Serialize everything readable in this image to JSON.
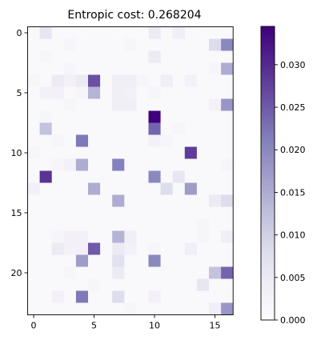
{
  "chart_data": {
    "type": "heatmap",
    "title": "Entropic cost: 0.268204",
    "xlabel": "",
    "ylabel": "",
    "n_cols": 17,
    "n_rows": 24,
    "x_ticks": [
      0,
      5,
      10,
      15
    ],
    "y_ticks": [
      0,
      5,
      10,
      15,
      20
    ],
    "colormap": "Purples",
    "colorbar": {
      "vmin": 0,
      "vmax": 0.0345,
      "ticks": [
        0.0,
        0.005,
        0.01,
        0.015,
        0.02,
        0.025,
        0.03
      ],
      "tick_labels": [
        "0.000",
        "0.005",
        "0.010",
        "0.015",
        "0.020",
        "0.025",
        "0.030"
      ]
    },
    "values": [
      [
        0.001,
        0.006,
        0.001,
        0.001,
        0.0005,
        0.001,
        0.001,
        0.0005,
        0.001,
        0.0005,
        0.005,
        0.001,
        0.004,
        0.001,
        0.0005,
        0.0005,
        0.001
      ],
      [
        0.001,
        0.001,
        0.001,
        0.002,
        0.001,
        0.001,
        0.001,
        0.001,
        0.002,
        0.001,
        0.001,
        0.001,
        0.001,
        0.001,
        0.001,
        0.008,
        0.02
      ],
      [
        0.001,
        0.002,
        0.001,
        0.001,
        0.001,
        0.001,
        0.001,
        0.001,
        0.001,
        0.001,
        0.005,
        0.001,
        0.001,
        0.001,
        0.001,
        0.001,
        0.001
      ],
      [
        0.001,
        0.001,
        0.001,
        0.002,
        0.001,
        0.001,
        0.001,
        0.001,
        0.001,
        0.001,
        0.001,
        0.001,
        0.001,
        0.001,
        0.001,
        0.002,
        0.015
      ],
      [
        0.002,
        0.001,
        0.005,
        0.003,
        0.005,
        0.026,
        0.001,
        0.004,
        0.004,
        0.002,
        0.001,
        0.004,
        0.001,
        0.003,
        0.001,
        0.001,
        0.001
      ],
      [
        0.001,
        0.003,
        0.003,
        0.001,
        0.002,
        0.014,
        0.001,
        0.004,
        0.003,
        0.001,
        0.002,
        0.001,
        0.001,
        0.001,
        0.001,
        0.001,
        0.001
      ],
      [
        0.001,
        0.001,
        0.001,
        0.002,
        0.001,
        0.001,
        0.001,
        0.004,
        0.004,
        0.001,
        0.001,
        0.001,
        0.001,
        0.001,
        0.001,
        0.003,
        0.018
      ],
      [
        0.001,
        0.002,
        0.001,
        0.001,
        0.001,
        0.001,
        0.001,
        0.001,
        0.001,
        0.001,
        0.0345,
        0.001,
        0.001,
        0.001,
        0.001,
        0.001,
        0.001
      ],
      [
        0.001,
        0.012,
        0.001,
        0.001,
        0.001,
        0.001,
        0.001,
        0.001,
        0.001,
        0.001,
        0.024,
        0.001,
        0.002,
        0.001,
        0.001,
        0.001,
        0.001
      ],
      [
        0.001,
        0.001,
        0.002,
        0.001,
        0.022,
        0.001,
        0.001,
        0.001,
        0.001,
        0.001,
        0.003,
        0.002,
        0.001,
        0.001,
        0.001,
        0.001,
        0.001
      ],
      [
        0.002,
        0.001,
        0.001,
        0.001,
        0.001,
        0.001,
        0.001,
        0.001,
        0.001,
        0.001,
        0.001,
        0.001,
        0.001,
        0.028,
        0.001,
        0.001,
        0.001
      ],
      [
        0.001,
        0.001,
        0.002,
        0.003,
        0.015,
        0.001,
        0.001,
        0.021,
        0.001,
        0.001,
        0.001,
        0.001,
        0.001,
        0.001,
        0.001,
        0.001,
        0.002
      ],
      [
        0.001,
        0.029,
        0.001,
        0.001,
        0.001,
        0.001,
        0.001,
        0.001,
        0.001,
        0.001,
        0.02,
        0.001,
        0.006,
        0.001,
        0.001,
        0.001,
        0.001
      ],
      [
        0.003,
        0.001,
        0.001,
        0.001,
        0.001,
        0.015,
        0.001,
        0.001,
        0.001,
        0.001,
        0.001,
        0.008,
        0.001,
        0.017,
        0.001,
        0.001,
        0.001
      ],
      [
        0.001,
        0.001,
        0.001,
        0.001,
        0.001,
        0.001,
        0.001,
        0.015,
        0.001,
        0.001,
        0.001,
        0.001,
        0.001,
        0.001,
        0.001,
        0.005,
        0.008
      ],
      [
        0.001,
        0.001,
        0.001,
        0.001,
        0.001,
        0.001,
        0.001,
        0.001,
        0.001,
        0.001,
        0.001,
        0.001,
        0.001,
        0.001,
        0.001,
        0.001,
        0.001
      ],
      [
        0.001,
        0.001,
        0.001,
        0.001,
        0.001,
        0.001,
        0.001,
        0.001,
        0.001,
        0.001,
        0.001,
        0.001,
        0.001,
        0.001,
        0.002,
        0.001,
        0.001
      ],
      [
        0.001,
        0.001,
        0.002,
        0.003,
        0.003,
        0.001,
        0.001,
        0.014,
        0.004,
        0.001,
        0.001,
        0.001,
        0.001,
        0.001,
        0.002,
        0.001,
        0.004
      ],
      [
        0.001,
        0.001,
        0.005,
        0.003,
        0.003,
        0.025,
        0.001,
        0.005,
        0.003,
        0.001,
        0.002,
        0.001,
        0.001,
        0.004,
        0.001,
        0.001,
        0.001
      ],
      [
        0.001,
        0.001,
        0.001,
        0.001,
        0.017,
        0.001,
        0.001,
        0.007,
        0.001,
        0.001,
        0.02,
        0.001,
        0.001,
        0.001,
        0.001,
        0.001,
        0.001
      ],
      [
        0.001,
        0.001,
        0.001,
        0.002,
        0.001,
        0.001,
        0.001,
        0.005,
        0.001,
        0.001,
        0.001,
        0.001,
        0.001,
        0.001,
        0.001,
        0.012,
        0.024
      ],
      [
        0.001,
        0.001,
        0.001,
        0.001,
        0.001,
        0.002,
        0.001,
        0.001,
        0.001,
        0.001,
        0.001,
        0.001,
        0.001,
        0.001,
        0.006,
        0.001,
        0.001
      ],
      [
        0.001,
        0.001,
        0.003,
        0.001,
        0.022,
        0.001,
        0.001,
        0.008,
        0.001,
        0.001,
        0.003,
        0.001,
        0.001,
        0.001,
        0.001,
        0.001,
        0.001
      ],
      [
        0.001,
        0.001,
        0.001,
        0.001,
        0.001,
        0.001,
        0.001,
        0.001,
        0.002,
        0.001,
        0.001,
        0.001,
        0.001,
        0.001,
        0.001,
        0.004,
        0.018
      ]
    ]
  }
}
